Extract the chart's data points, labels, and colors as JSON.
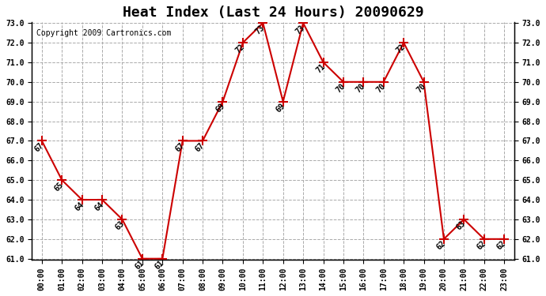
{
  "title": "Heat Index (Last 24 Hours) 20090629",
  "copyright": "Copyright 2009 Cartronics.com",
  "hours": [
    "00:00",
    "01:00",
    "02:00",
    "03:00",
    "04:00",
    "05:00",
    "06:00",
    "07:00",
    "08:00",
    "09:00",
    "10:00",
    "11:00",
    "12:00",
    "13:00",
    "14:00",
    "15:00",
    "16:00",
    "17:00",
    "18:00",
    "19:00",
    "20:00",
    "21:00",
    "22:00",
    "23:00"
  ],
  "values": [
    67,
    65,
    64,
    64,
    63,
    61,
    61,
    67,
    67,
    69,
    72,
    73,
    69,
    73,
    71,
    70,
    70,
    70,
    72,
    70,
    62,
    63,
    62,
    62
  ],
  "line_color": "#cc0000",
  "marker": "+",
  "marker_size": 8,
  "marker_color": "#cc0000",
  "ylim": [
    61.0,
    73.0
  ],
  "yticks": [
    61.0,
    62.0,
    63.0,
    64.0,
    65.0,
    66.0,
    67.0,
    68.0,
    69.0,
    70.0,
    71.0,
    72.0,
    73.0
  ],
  "bg_color": "#ffffff",
  "grid_color": "#aaaaaa",
  "title_fontsize": 13,
  "label_fontsize": 7,
  "tick_fontsize": 7,
  "copyright_fontsize": 7
}
